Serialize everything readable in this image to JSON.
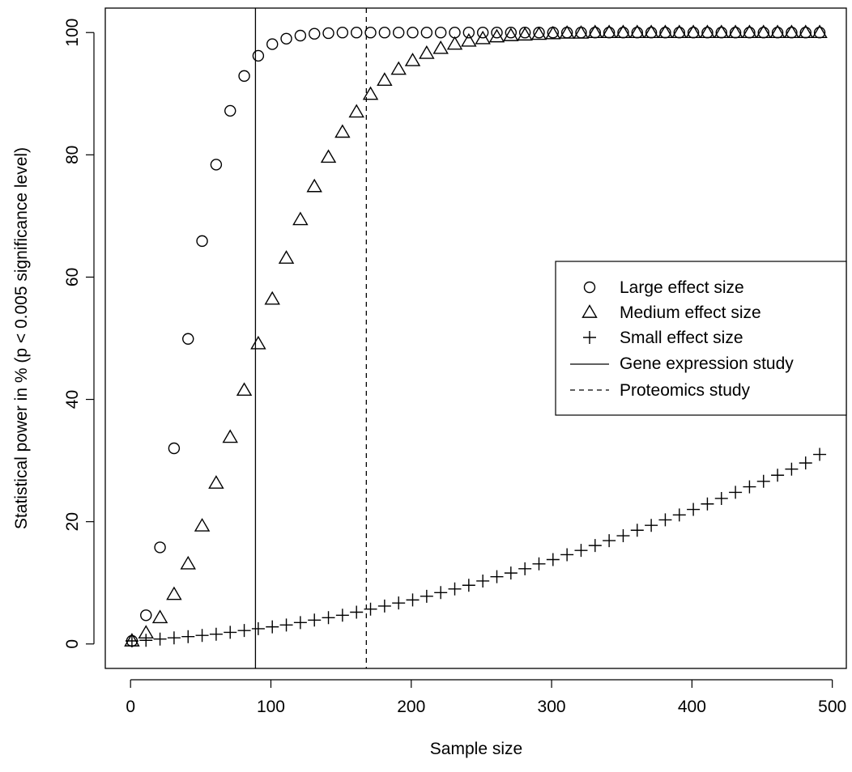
{
  "chart_data": {
    "type": "scatter",
    "title": "",
    "xlabel": "Sample size",
    "ylabel": "Statistical power in % (p < 0.005 significance level)",
    "xlim": [
      -18,
      510
    ],
    "ylim": [
      -4,
      104
    ],
    "x_ticks": [
      0,
      100,
      200,
      300,
      400,
      500
    ],
    "y_ticks": [
      0,
      20,
      40,
      60,
      80,
      100
    ],
    "x_tick_labels": [
      "0",
      "100",
      "200",
      "300",
      "400",
      "500"
    ],
    "y_tick_labels": [
      "0",
      "20",
      "40",
      "60",
      "80",
      "100"
    ],
    "grid": false,
    "legend_position": "right",
    "x": [
      1,
      11,
      21,
      31,
      41,
      51,
      61,
      71,
      81,
      91,
      101,
      111,
      121,
      131,
      141,
      151,
      161,
      171,
      181,
      191,
      201,
      211,
      221,
      231,
      241,
      251,
      261,
      271,
      281,
      291,
      301,
      311,
      321,
      331,
      341,
      351,
      361,
      371,
      381,
      391,
      401,
      411,
      421,
      431,
      441,
      451,
      461,
      471,
      481,
      491
    ],
    "series": [
      {
        "name": "Large effect size",
        "marker": "circle",
        "values": [
          0.5,
          4.7,
          15.8,
          32.0,
          49.9,
          65.9,
          78.4,
          87.2,
          92.9,
          96.2,
          98.1,
          99.0,
          99.5,
          99.8,
          99.9,
          100,
          100,
          100,
          100,
          100,
          100,
          100,
          100,
          100,
          100,
          100,
          100,
          100,
          100,
          100,
          100,
          100,
          100,
          100,
          100,
          100,
          100,
          100,
          100,
          100,
          100,
          100,
          100,
          100,
          100,
          100,
          100,
          100,
          100,
          100
        ]
      },
      {
        "name": "Medium effect size",
        "marker": "triangle",
        "values": [
          0.5,
          1.8,
          4.3,
          8.1,
          13.1,
          19.3,
          26.3,
          33.8,
          41.5,
          49.1,
          56.4,
          63.1,
          69.4,
          74.8,
          79.6,
          83.7,
          87.0,
          89.9,
          92.2,
          94.0,
          95.4,
          96.6,
          97.4,
          98.1,
          98.6,
          99.0,
          99.3,
          99.5,
          99.6,
          99.7,
          99.8,
          99.9,
          99.9,
          100,
          100,
          100,
          100,
          100,
          100,
          100,
          100,
          100,
          100,
          100,
          100,
          100,
          100,
          100,
          100,
          100
        ]
      },
      {
        "name": "Small effect size",
        "marker": "plus",
        "values": [
          0.5,
          0.6,
          0.8,
          1.0,
          1.2,
          1.4,
          1.6,
          1.9,
          2.2,
          2.5,
          2.8,
          3.1,
          3.5,
          3.9,
          4.3,
          4.7,
          5.2,
          5.7,
          6.2,
          6.7,
          7.2,
          7.8,
          8.4,
          9.0,
          9.6,
          10.3,
          11.0,
          11.6,
          12.3,
          13.1,
          13.8,
          14.6,
          15.3,
          16.1,
          16.9,
          17.7,
          18.6,
          19.4,
          20.3,
          21.1,
          22.0,
          22.9,
          23.8,
          24.8,
          25.7,
          26.6,
          27.6,
          28.6,
          29.6,
          31.0
        ]
      }
    ],
    "vlines": [
      {
        "name": "Gene expression study",
        "style": "solid",
        "x": 89
      },
      {
        "name": "Proteomics study",
        "style": "dashed",
        "x": 168
      }
    ],
    "colors": {
      "ink": "#000000",
      "background": "#ffffff"
    }
  }
}
